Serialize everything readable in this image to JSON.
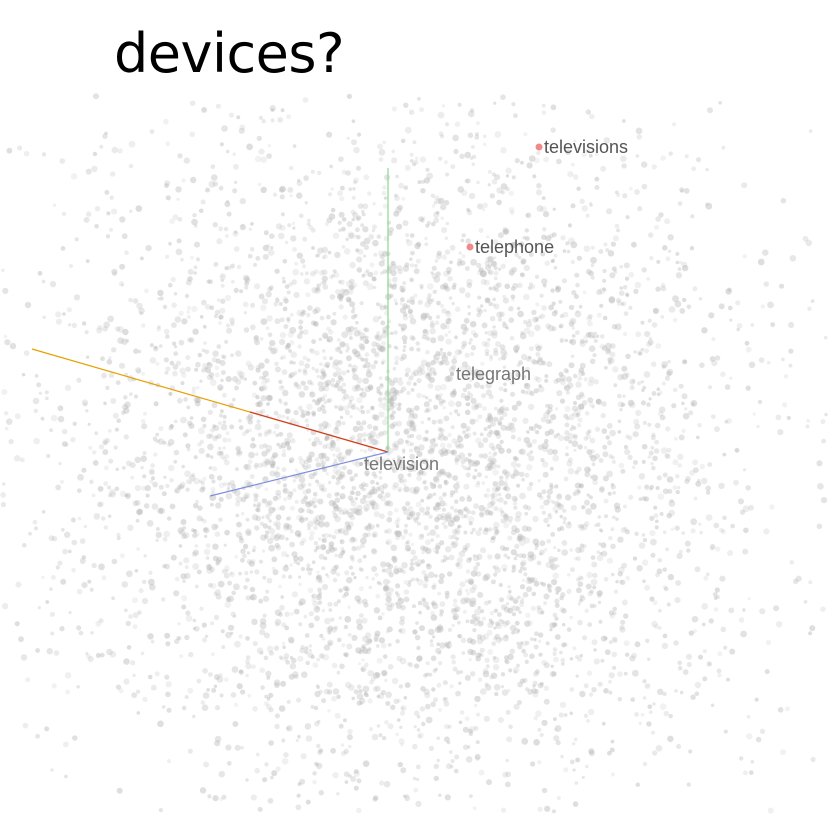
{
  "title": "devices?",
  "chart_data": {
    "type": "scatter",
    "title": "devices?",
    "xlabel": "",
    "ylabel": "",
    "grid": false,
    "background_point_color": "#b8b8b8",
    "highlight_color": "#f08a8a",
    "axis_colors": {
      "x": "#e8a000",
      "y": "#8fd68f",
      "z": "#7f8fe0"
    },
    "labeled_points": [
      {
        "label": "televisions",
        "highlight": true
      },
      {
        "label": "telephone",
        "highlight": true
      },
      {
        "label": "telegraph",
        "highlight": false
      },
      {
        "label": "television",
        "highlight": false
      }
    ]
  }
}
